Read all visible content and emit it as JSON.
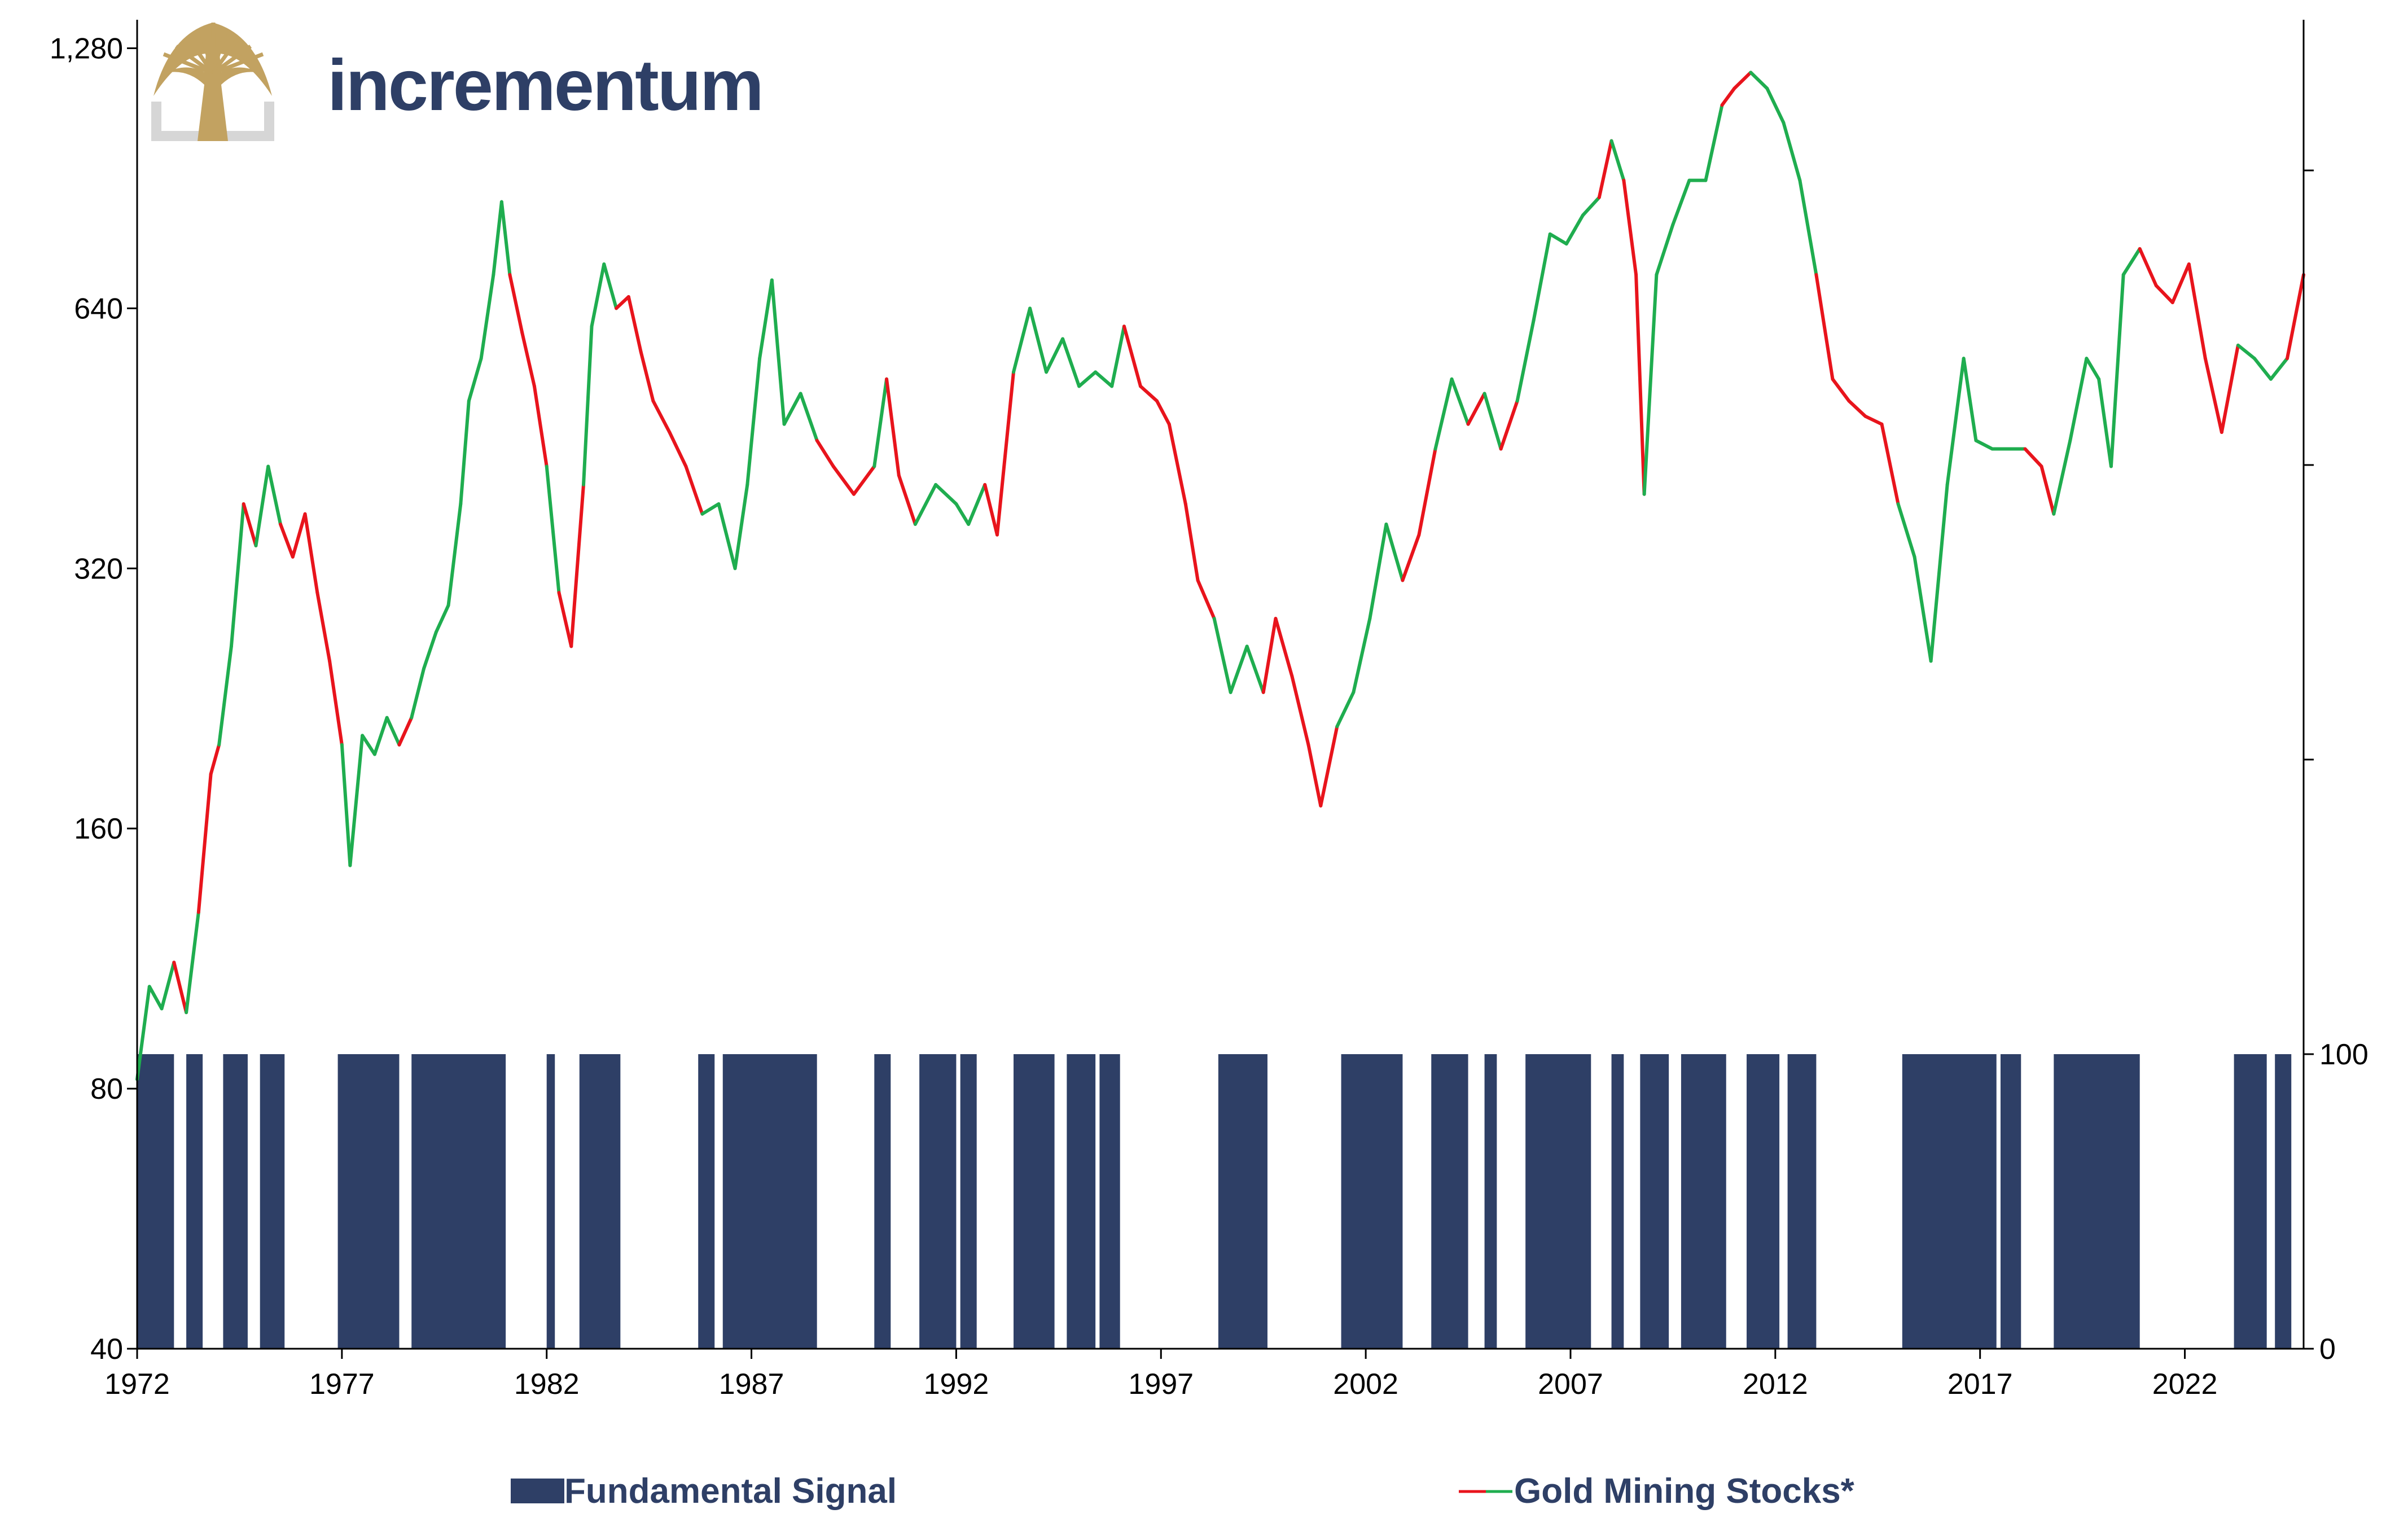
{
  "brand": {
    "name": "incrementum",
    "logo": "tree-logo",
    "logo_color": "#c2a261"
  },
  "legend": {
    "signal_label": "Fundamental Signal",
    "stocks_label": "Gold Mining Stocks*"
  },
  "colors": {
    "signal": "#2e3f66",
    "bullish": "#1fad4f",
    "bearish": "#e8141c",
    "axis": "#000000"
  },
  "chart_data": {
    "type": "line",
    "x_ticks": [
      "1972",
      "1977",
      "1982",
      "1987",
      "1992",
      "1997",
      "2002",
      "2007",
      "2012",
      "2017",
      "2022"
    ],
    "xlim": [
      1972,
      2024.9
    ],
    "y_left": {
      "scale": "log2",
      "ticks": [
        "40",
        "80",
        "160",
        "320",
        "640",
        "1,280"
      ],
      "values": [
        40,
        80,
        160,
        320,
        640,
        1280
      ],
      "ylim": [
        40,
        1340
      ]
    },
    "y_right": {
      "ticks": [
        "0",
        "100"
      ],
      "values": [
        0,
        100
      ],
      "ylim": [
        0,
        100
      ]
    },
    "series": [
      {
        "name": "Gold Mining Stocks*",
        "axis": "left",
        "color_rule": "green while Fundamental Signal = 100, red while 0",
        "points": [
          [
            1972.0,
            82
          ],
          [
            1972.3,
            105
          ],
          [
            1972.6,
            99
          ],
          [
            1972.9,
            112
          ],
          [
            1973.2,
            98
          ],
          [
            1973.5,
            128
          ],
          [
            1973.8,
            185
          ],
          [
            1974.0,
            200
          ],
          [
            1974.3,
            260
          ],
          [
            1974.6,
            380
          ],
          [
            1974.9,
            340
          ],
          [
            1975.2,
            420
          ],
          [
            1975.5,
            360
          ],
          [
            1975.8,
            330
          ],
          [
            1976.1,
            370
          ],
          [
            1976.4,
            300
          ],
          [
            1976.7,
            250
          ],
          [
            1977.0,
            200
          ],
          [
            1977.2,
            145
          ],
          [
            1977.5,
            205
          ],
          [
            1977.8,
            195
          ],
          [
            1978.1,
            215
          ],
          [
            1978.4,
            200
          ],
          [
            1978.7,
            215
          ],
          [
            1979.0,
            245
          ],
          [
            1979.3,
            270
          ],
          [
            1979.6,
            290
          ],
          [
            1979.9,
            380
          ],
          [
            1980.1,
            500
          ],
          [
            1980.4,
            560
          ],
          [
            1980.7,
            700
          ],
          [
            1980.9,
            850
          ],
          [
            1981.1,
            700
          ],
          [
            1981.4,
            600
          ],
          [
            1981.7,
            520
          ],
          [
            1982.0,
            420
          ],
          [
            1982.3,
            300
          ],
          [
            1982.6,
            260
          ],
          [
            1982.9,
            400
          ],
          [
            1983.1,
            610
          ],
          [
            1983.4,
            720
          ],
          [
            1983.7,
            640
          ],
          [
            1984.0,
            660
          ],
          [
            1984.3,
            570
          ],
          [
            1984.6,
            500
          ],
          [
            1985.0,
            460
          ],
          [
            1985.4,
            420
          ],
          [
            1985.8,
            370
          ],
          [
            1986.2,
            380
          ],
          [
            1986.6,
            320
          ],
          [
            1986.9,
            400
          ],
          [
            1987.2,
            560
          ],
          [
            1987.5,
            690
          ],
          [
            1987.8,
            470
          ],
          [
            1988.2,
            510
          ],
          [
            1988.6,
            450
          ],
          [
            1989.0,
            420
          ],
          [
            1989.5,
            390
          ],
          [
            1990.0,
            420
          ],
          [
            1990.3,
            530
          ],
          [
            1990.6,
            410
          ],
          [
            1991.0,
            360
          ],
          [
            1991.5,
            400
          ],
          [
            1992.0,
            380
          ],
          [
            1992.3,
            360
          ],
          [
            1992.7,
            400
          ],
          [
            1993.0,
            350
          ],
          [
            1993.4,
            540
          ],
          [
            1993.8,
            640
          ],
          [
            1994.2,
            540
          ],
          [
            1994.6,
            590
          ],
          [
            1995.0,
            520
          ],
          [
            1995.4,
            540
          ],
          [
            1995.8,
            520
          ],
          [
            1996.1,
            610
          ],
          [
            1996.5,
            520
          ],
          [
            1996.9,
            500
          ],
          [
            1997.2,
            470
          ],
          [
            1997.6,
            380
          ],
          [
            1997.9,
            310
          ],
          [
            1998.3,
            280
          ],
          [
            1998.7,
            230
          ],
          [
            1999.1,
            260
          ],
          [
            1999.5,
            230
          ],
          [
            1999.8,
            280
          ],
          [
            2000.2,
            240
          ],
          [
            2000.6,
            200
          ],
          [
            2000.9,
            170
          ],
          [
            2001.3,
            210
          ],
          [
            2001.7,
            230
          ],
          [
            2002.1,
            280
          ],
          [
            2002.5,
            360
          ],
          [
            2002.9,
            310
          ],
          [
            2003.3,
            350
          ],
          [
            2003.7,
            440
          ],
          [
            2004.1,
            530
          ],
          [
            2004.5,
            470
          ],
          [
            2004.9,
            510
          ],
          [
            2005.3,
            440
          ],
          [
            2005.7,
            500
          ],
          [
            2006.1,
            620
          ],
          [
            2006.5,
            780
          ],
          [
            2006.9,
            760
          ],
          [
            2007.3,
            820
          ],
          [
            2007.7,
            860
          ],
          [
            2008.0,
            1000
          ],
          [
            2008.3,
            900
          ],
          [
            2008.6,
            700
          ],
          [
            2008.8,
            390
          ],
          [
            2009.1,
            700
          ],
          [
            2009.5,
            800
          ],
          [
            2009.9,
            900
          ],
          [
            2010.3,
            900
          ],
          [
            2010.7,
            1100
          ],
          [
            2011.0,
            1150
          ],
          [
            2011.4,
            1200
          ],
          [
            2011.8,
            1150
          ],
          [
            2012.2,
            1050
          ],
          [
            2012.6,
            900
          ],
          [
            2013.0,
            700
          ],
          [
            2013.4,
            530
          ],
          [
            2013.8,
            500
          ],
          [
            2014.2,
            480
          ],
          [
            2014.6,
            470
          ],
          [
            2015.0,
            380
          ],
          [
            2015.4,
            330
          ],
          [
            2015.8,
            250
          ],
          [
            2016.2,
            400
          ],
          [
            2016.6,
            560
          ],
          [
            2016.9,
            450
          ],
          [
            2017.3,
            440
          ],
          [
            2017.7,
            440
          ],
          [
            2018.1,
            440
          ],
          [
            2018.5,
            420
          ],
          [
            2018.8,
            370
          ],
          [
            2019.2,
            450
          ],
          [
            2019.6,
            560
          ],
          [
            2019.9,
            530
          ],
          [
            2020.2,
            420
          ],
          [
            2020.5,
            700
          ],
          [
            2020.9,
            750
          ],
          [
            2021.3,
            680
          ],
          [
            2021.7,
            650
          ],
          [
            2022.1,
            720
          ],
          [
            2022.5,
            560
          ],
          [
            2022.9,
            460
          ],
          [
            2023.3,
            580
          ],
          [
            2023.7,
            560
          ],
          [
            2024.1,
            530
          ],
          [
            2024.5,
            560
          ],
          [
            2024.9,
            700
          ]
        ]
      },
      {
        "name": "Fundamental Signal",
        "axis": "right",
        "type": "bar",
        "values": [
          [
            1972.0,
            1972.9,
            100
          ],
          [
            1973.2,
            1973.6,
            100
          ],
          [
            1974.1,
            1974.7,
            100
          ],
          [
            1975.0,
            1975.6,
            100
          ],
          [
            1976.9,
            1978.4,
            100
          ],
          [
            1978.7,
            1981.0,
            100
          ],
          [
            1982.0,
            1982.2,
            100
          ],
          [
            1982.8,
            1983.8,
            100
          ],
          [
            1985.7,
            1986.1,
            100
          ],
          [
            1986.3,
            1988.6,
            100
          ],
          [
            1990.0,
            1990.4,
            100
          ],
          [
            1991.1,
            1992.0,
            100
          ],
          [
            1992.1,
            1992.5,
            100
          ],
          [
            1993.4,
            1994.4,
            100
          ],
          [
            1994.7,
            1995.4,
            100
          ],
          [
            1995.5,
            1996.0,
            100
          ],
          [
            1998.4,
            1999.6,
            100
          ],
          [
            2001.4,
            2002.9,
            100
          ],
          [
            2003.6,
            2004.5,
            100
          ],
          [
            2004.9,
            2005.2,
            100
          ],
          [
            2005.9,
            2007.5,
            100
          ],
          [
            2008.0,
            2008.3,
            100
          ],
          [
            2008.7,
            2009.4,
            100
          ],
          [
            2009.7,
            2010.8,
            100
          ],
          [
            2011.3,
            2012.1,
            100
          ],
          [
            2012.3,
            2013.0,
            100
          ],
          [
            2015.1,
            2017.4,
            100
          ],
          [
            2017.5,
            2018.0,
            100
          ],
          [
            2018.8,
            2020.9,
            100
          ],
          [
            2023.2,
            2024.0,
            100
          ],
          [
            2024.2,
            2024.6,
            100
          ]
        ]
      }
    ],
    "grid": false,
    "legend_position": "bottom"
  }
}
